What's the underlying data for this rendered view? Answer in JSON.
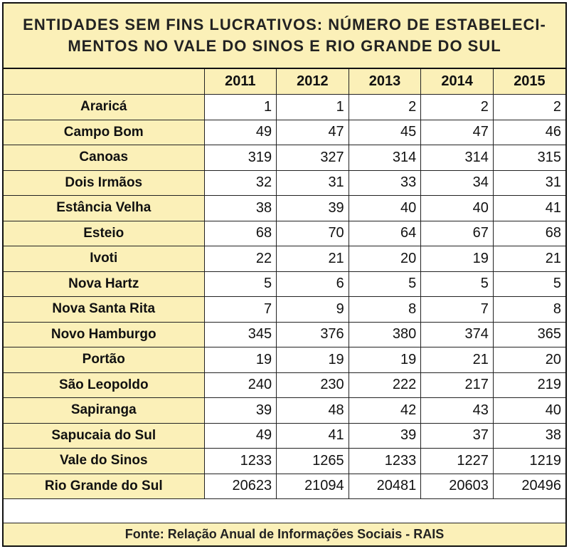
{
  "title": {
    "line1": "ENTIDADES  SEM FINS LUCRATIVOS:  NÚMERO  DE  ESTABELECI-",
    "line2": "MENTOS NO VALE DO SINOS E RIO GRANDE DO SUL"
  },
  "years": [
    "2011",
    "2012",
    "2013",
    "2014",
    "2015"
  ],
  "rows": [
    {
      "name": "Araricá",
      "values": [
        "1",
        "1",
        "2",
        "2",
        "2"
      ]
    },
    {
      "name": "Campo Bom",
      "values": [
        "49",
        "47",
        "45",
        "47",
        "46"
      ]
    },
    {
      "name": "Canoas",
      "values": [
        "319",
        "327",
        "314",
        "314",
        "315"
      ]
    },
    {
      "name": "Dois Irmãos",
      "values": [
        "32",
        "31",
        "33",
        "34",
        "31"
      ]
    },
    {
      "name": "Estância Velha",
      "values": [
        "38",
        "39",
        "40",
        "40",
        "41"
      ]
    },
    {
      "name": "Esteio",
      "values": [
        "68",
        "70",
        "64",
        "67",
        "68"
      ]
    },
    {
      "name": "Ivoti",
      "values": [
        "22",
        "21",
        "20",
        "19",
        "21"
      ]
    },
    {
      "name": "Nova Hartz",
      "values": [
        "5",
        "6",
        "5",
        "5",
        "5"
      ]
    },
    {
      "name": "Nova Santa Rita",
      "values": [
        "7",
        "9",
        "8",
        "7",
        "8"
      ]
    },
    {
      "name": "Novo Hamburgo",
      "values": [
        "345",
        "376",
        "380",
        "374",
        "365"
      ]
    },
    {
      "name": "Portão",
      "values": [
        "19",
        "19",
        "19",
        "21",
        "20"
      ]
    },
    {
      "name": "São Leopoldo",
      "values": [
        "240",
        "230",
        "222",
        "217",
        "219"
      ]
    },
    {
      "name": "Sapiranga",
      "values": [
        "39",
        "48",
        "42",
        "43",
        "40"
      ]
    },
    {
      "name": "Sapucaia do Sul",
      "values": [
        "49",
        "41",
        "39",
        "37",
        "38"
      ]
    },
    {
      "name": "Vale do Sinos",
      "values": [
        "1233",
        "1265",
        "1233",
        "1227",
        "1219"
      ]
    },
    {
      "name": "Rio Grande do Sul",
      "values": [
        "20623",
        "21094",
        "20481",
        "20603",
        "20496"
      ]
    }
  ],
  "footer": "Fonte:  Relação Anual de Informações Sociais - RAIS",
  "colors": {
    "header_bg": "#fbf0b8",
    "border": "#222222"
  }
}
